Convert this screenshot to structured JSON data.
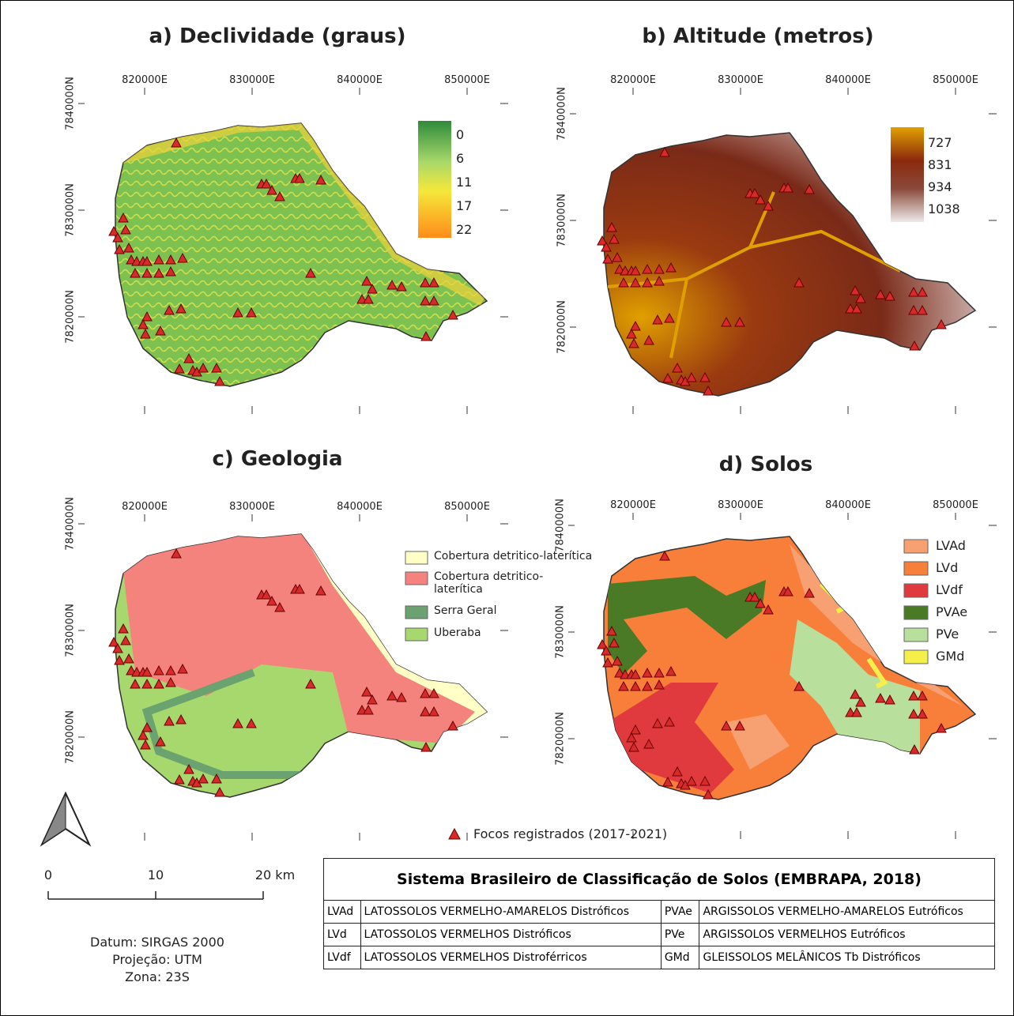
{
  "panels": [
    {
      "title": "a) Declividade (graus)",
      "legend": [
        "0",
        "6",
        "11",
        "17",
        "22"
      ]
    },
    {
      "title": "b) Altitude (metros)",
      "legend": [
        "727",
        "831",
        "934",
        "1038"
      ]
    },
    {
      "title": "c) Geologia",
      "legend": [
        {
          "label": "Cobertura detritico-laterítica",
          "color": "#ffffc6"
        },
        {
          "label": "Cobertura detritico-laterítica",
          "color": "#f4837d"
        },
        {
          "label": "Serra Geral",
          "color": "#6aa36f"
        },
        {
          "label": "Uberaba",
          "color": "#a6d86e"
        }
      ]
    },
    {
      "title": "d) Solos",
      "legend": [
        {
          "label": "LVAd",
          "color": "#f7a072"
        },
        {
          "label": "LVd",
          "color": "#f77f3a"
        },
        {
          "label": "LVdf",
          "color": "#e0393e"
        },
        {
          "label": "PVAe",
          "color": "#4a7a26"
        },
        {
          "label": "PVe",
          "color": "#b9df9c"
        },
        {
          "label": "GMd",
          "color": "#f5ef4a"
        }
      ]
    }
  ],
  "x_labels": [
    "820000E",
    "830000E",
    "840000E",
    "850000E"
  ],
  "y_labels": [
    "7840000N",
    "7830000N",
    "7820000N"
  ],
  "points_legend": "Focos registrados (2017-2021)",
  "scale": [
    "0",
    "10",
    "20 km"
  ],
  "datum": [
    "Datum: SIRGAS 2000",
    "Projeção: UTM",
    "Zona: 23S"
  ],
  "table": {
    "title": "Sistema Brasileiro de Classificação de Solos (EMBRAPA, 2018)",
    "rows": [
      [
        "LVAd",
        "LATOSSOLOS VERMELHO-AMARELOS Distróficos",
        "PVAe",
        "ARGISSOLOS VERMELHO-AMARELOS Eutróficos"
      ],
      [
        "LVd",
        "LATOSSOLOS VERMELHOS Distróficos",
        "PVe",
        "ARGISSOLOS VERMELHOS Eutróficos"
      ],
      [
        "LVdf",
        "LATOSSOLOS VERMELHOS Distroférricos",
        "GMd",
        "GLEISSOLOS MELÂNICOS Tb Distróficos"
      ]
    ]
  }
}
